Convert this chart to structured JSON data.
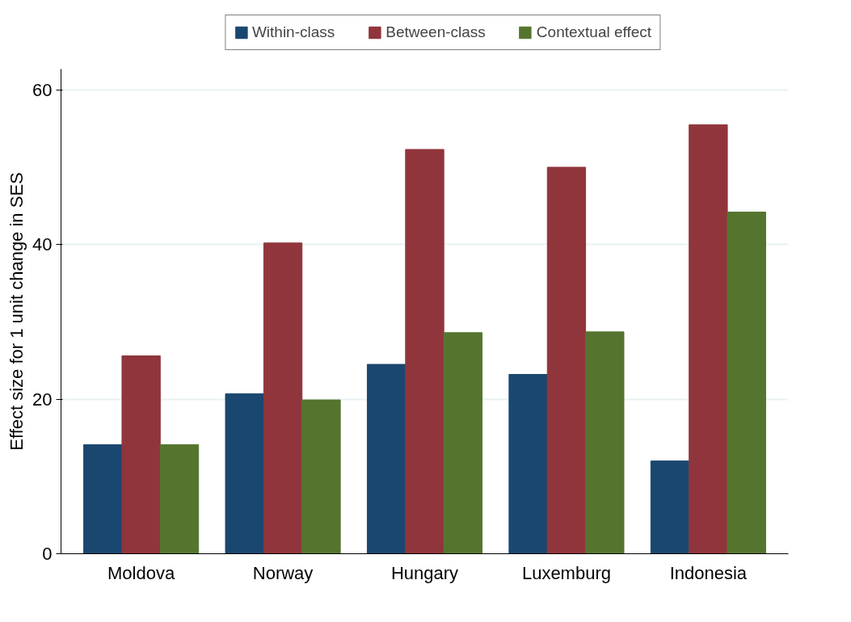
{
  "chart_data": {
    "type": "bar",
    "ylabel": "Effect size for 1 unit change in SES",
    "categories": [
      "Moldova",
      "Norway",
      "Hungary",
      "Luxemburg",
      "Indonesia"
    ],
    "series": [
      {
        "name": "Within-class",
        "color": "#1a476f",
        "values": [
          14.1,
          20.7,
          24.5,
          23.2,
          12.0
        ]
      },
      {
        "name": "Between-class",
        "color": "#90353b",
        "values": [
          25.6,
          40.2,
          52.3,
          50.0,
          55.5
        ]
      },
      {
        "name": "Contextual effect",
        "color": "#55752f",
        "values": [
          14.1,
          19.9,
          28.6,
          28.7,
          44.2
        ]
      }
    ],
    "ylim": [
      0,
      62.7
    ],
    "yticks": [
      0,
      20,
      40,
      60
    ],
    "grid": "y",
    "legend": "top"
  }
}
